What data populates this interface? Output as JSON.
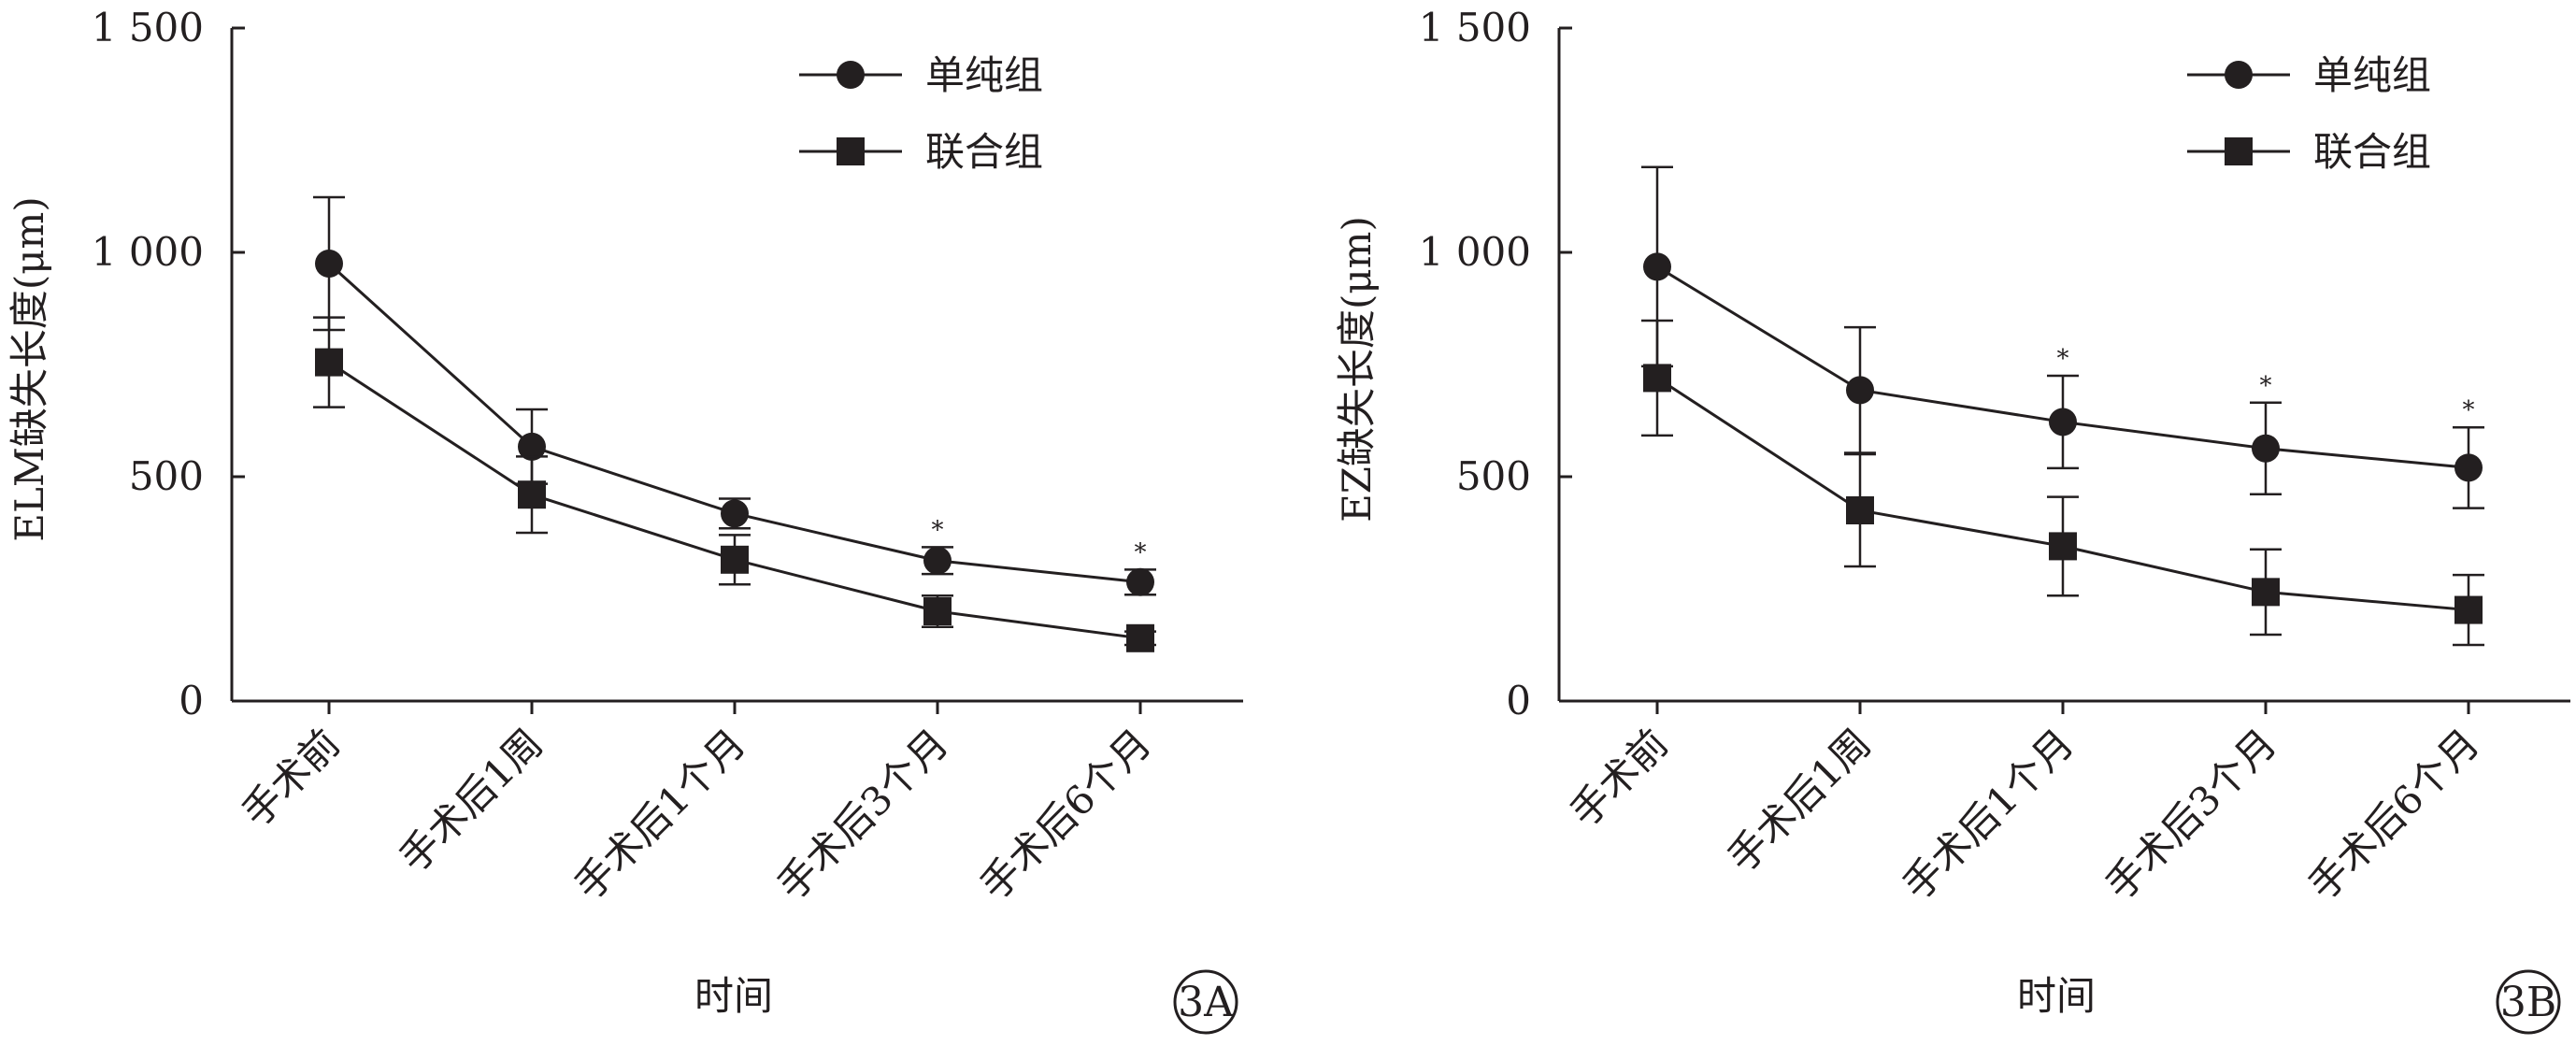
{
  "chart_data": [
    {
      "type": "line",
      "panel_label": "3A",
      "ylabel": "ELM缺失长度(μm)",
      "xlabel": "时间",
      "categories": [
        "手术前",
        "手术后1周",
        "手术后1个月",
        "手术后3个月",
        "手术后6个月"
      ],
      "ylim": [
        0,
        1500
      ],
      "yticks": [
        0,
        500,
        1000,
        1500
      ],
      "ytick_labels": [
        "0",
        "500",
        "1 000",
        "1 500"
      ],
      "legend_position": "top-right",
      "grid": false,
      "series": [
        {
          "name": "单纯组",
          "marker": "circle",
          "values": [
            975,
            567,
            418,
            313,
            265
          ],
          "error": [
            148,
            83,
            33,
            30,
            28
          ]
        },
        {
          "name": "联合组",
          "marker": "square",
          "values": [
            755,
            460,
            315,
            200,
            140
          ],
          "error": [
            100,
            85,
            55,
            35,
            15
          ]
        }
      ],
      "significance_marks": [
        {
          "category": "手术后3个月",
          "text": "*"
        },
        {
          "category": "手术后6个月",
          "text": "*"
        }
      ]
    },
    {
      "type": "line",
      "panel_label": "3B",
      "ylabel": "EZ缺失长度(μm)",
      "xlabel": "时间",
      "categories": [
        "手术前",
        "手术后1周",
        "手术后1个月",
        "手术后3个月",
        "手术后6个月"
      ],
      "ylim": [
        0,
        1500
      ],
      "yticks": [
        0,
        500,
        1000,
        1500
      ],
      "ytick_labels": [
        "0",
        "500",
        "1 000",
        "1 500"
      ],
      "legend_position": "top-right",
      "grid": false,
      "series": [
        {
          "name": "单纯组",
          "marker": "circle",
          "values": [
            968,
            693,
            622,
            563,
            520
          ],
          "error": [
            222,
            140,
            103,
            102,
            90
          ]
        },
        {
          "name": "联合组",
          "marker": "square",
          "values": [
            720,
            425,
            345,
            243,
            203
          ],
          "error": [
            128,
            125,
            110,
            95,
            78
          ]
        }
      ],
      "significance_marks": [
        {
          "category": "手术后1个月",
          "text": "*"
        },
        {
          "category": "手术后3个月",
          "text": "*"
        },
        {
          "category": "手术后6个月",
          "text": "*"
        }
      ]
    }
  ]
}
